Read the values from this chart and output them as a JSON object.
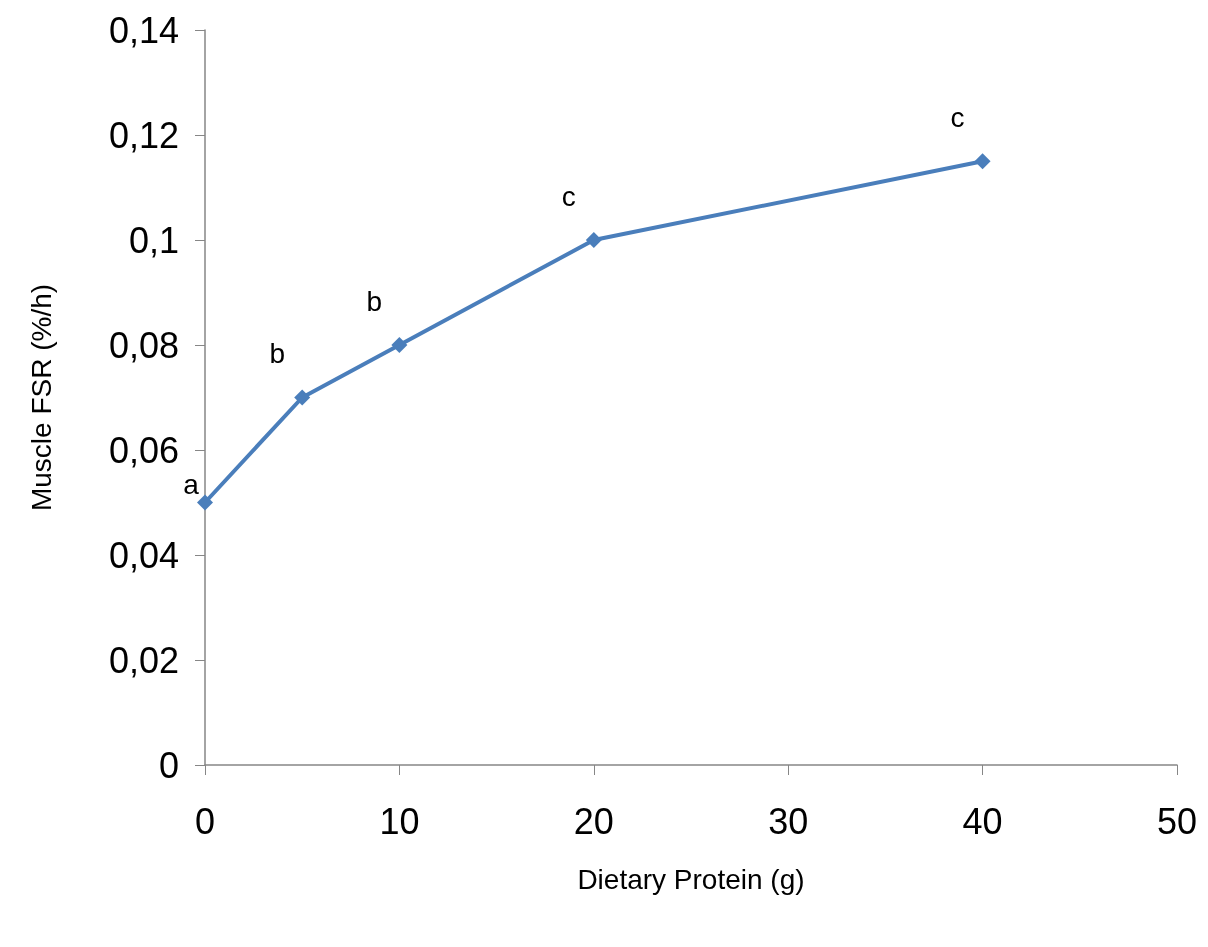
{
  "chart_data": {
    "type": "line",
    "xlabel": "Dietary Protein (g)",
    "ylabel": "Muscle FSR (%/h)",
    "x": [
      0,
      5,
      10,
      20,
      40
    ],
    "series": [
      {
        "color": "#4a7ebb",
        "values": [
          0.05,
          0.07,
          0.08,
          0.1,
          0.115
        ]
      }
    ],
    "xlim": [
      0,
      50
    ],
    "xticks": [
      0,
      10,
      20,
      30,
      40,
      50
    ],
    "ylim": [
      0,
      0.14
    ],
    "yticks": [
      0,
      {
        "value": 0.02,
        "label": "0,02"
      },
      {
        "value": 0.04,
        "label": "0,04"
      },
      {
        "value": 0.06,
        "label": "0,06"
      },
      {
        "value": 0.08,
        "label": "0,08"
      },
      {
        "value": 0.1,
        "label": "0,1"
      },
      {
        "value": 0.12,
        "label": "0,12"
      },
      {
        "value": 0.14,
        "label": "0,14"
      }
    ],
    "annotations": [
      {
        "text": "a",
        "x": 0,
        "y": 0.05
      },
      {
        "text": "b",
        "x": 5,
        "y": 0.07
      },
      {
        "text": "b",
        "x": 10,
        "y": 0.08
      },
      {
        "text": "c",
        "x": 20,
        "y": 0.1
      },
      {
        "text": "c",
        "x": 40,
        "y": 0.115
      }
    ],
    "marker": "diamond",
    "line_style": "solid"
  }
}
